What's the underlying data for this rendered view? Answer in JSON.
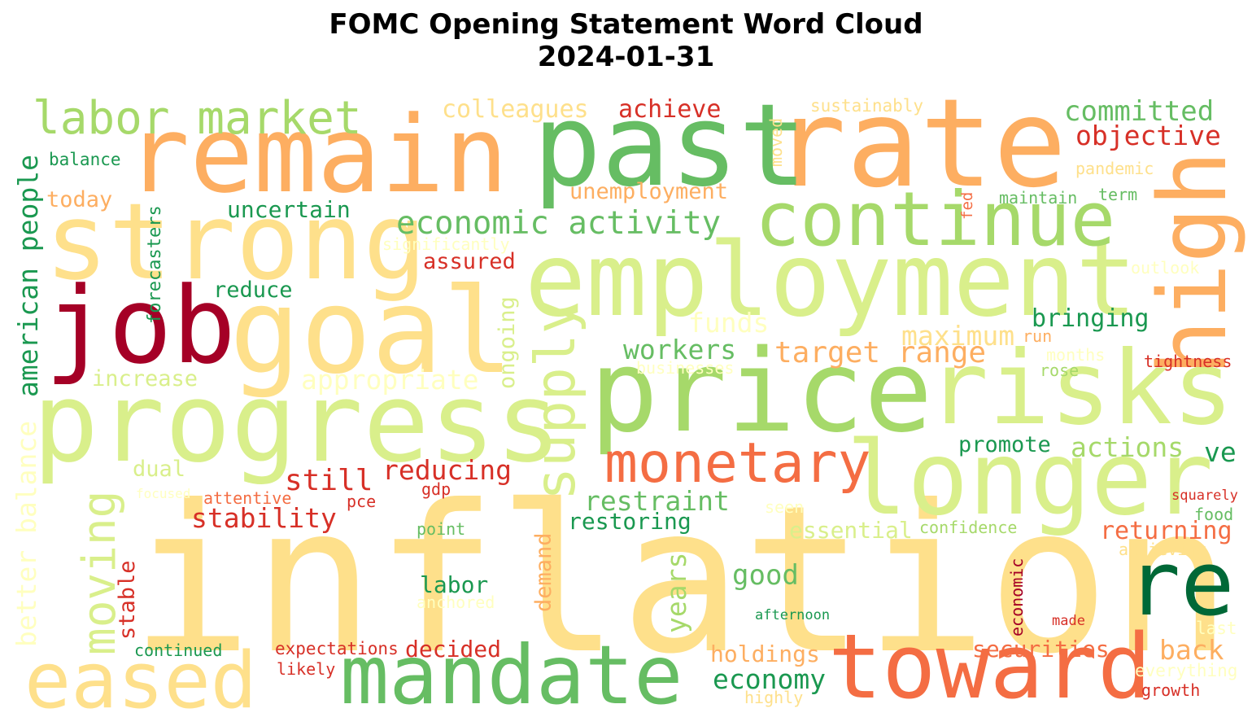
{
  "title_line1": "FOMC Opening Statement Word Cloud",
  "title_line2": "2024-01-31",
  "colors": {
    "dark_red": "#a50026",
    "red": "#d73027",
    "orange_red": "#f46d43",
    "orange": "#fdae61",
    "light_orange": "#fee08b",
    "pale_yellow": "#ffffbf",
    "light_green": "#d9ef8b",
    "green_yellow": "#a6d96a",
    "green": "#66bd63",
    "dark_green": "#1a9850",
    "deep_green": "#006837"
  },
  "words": {
    "inflation": "inflation",
    "rate": "rate",
    "remain": "remain",
    "past": "past",
    "strong": "strong",
    "employment": "employment",
    "continue": "continue",
    "job": "job",
    "goal": "goal",
    "progress": "progress",
    "price": "price",
    "risks": "risks",
    "longer": "longer",
    "high": "high",
    "re": "re",
    "toward": "toward",
    "mandate": "mandate",
    "eased": "eased",
    "monetary": "monetary",
    "supply": "supply",
    "moving": "moving",
    "labor_market": "labor market",
    "colleagues": "colleagues",
    "achieve": "achieve",
    "sustainably": "sustainably",
    "committed": "committed",
    "objective": "objective",
    "balance": "balance",
    "today": "today",
    "american_people": "american people",
    "forecasters": "forecasters",
    "uncertain": "uncertain",
    "unemployment": "unemployment",
    "moved": "moved",
    "pandemic": "pandemic",
    "maintain": "maintain",
    "term": "term",
    "fed": "fed",
    "economic_activity": "economic activity",
    "significantly": "significantly",
    "assured": "assured",
    "outlook": "outlook",
    "reduce": "reduce",
    "funds": "funds",
    "bringing": "bringing",
    "ongoing": "ongoing",
    "maximum": "maximum",
    "run": "run",
    "workers": "workers",
    "target_range": "target range",
    "months": "months",
    "tightness": "tightness",
    "businesses": "businesses",
    "rose": "rose",
    "increase": "increase",
    "appropriate": "appropriate",
    "better_balance": "better balance",
    "promote": "promote",
    "actions": "actions",
    "ve": "ve",
    "dual": "dual",
    "still": "still",
    "reducing": "reducing",
    "focused": "focused",
    "attentive": "attentive",
    "gdp": "gdp",
    "pce": "pce",
    "stability": "stability",
    "restraint": "restraint",
    "seen": "seen",
    "squarely": "squarely",
    "food": "food",
    "point": "point",
    "restoring": "restoring",
    "demand": "demand",
    "essential": "essential",
    "confidence": "confidence",
    "returning": "returning",
    "achieving": "achieving",
    "labor": "labor",
    "anchored": "anchored",
    "stable": "stable",
    "years": "years",
    "good": "good",
    "economic": "economic",
    "afternoon": "afternoon",
    "made": "made",
    "last": "last",
    "continued": "continued",
    "expectations": "expectations",
    "decided": "decided",
    "likely": "likely",
    "holdings": "holdings",
    "securities": "securities",
    "back": "back",
    "economy": "economy",
    "highly": "highly",
    "everything": "everything",
    "growth": "growth"
  }
}
